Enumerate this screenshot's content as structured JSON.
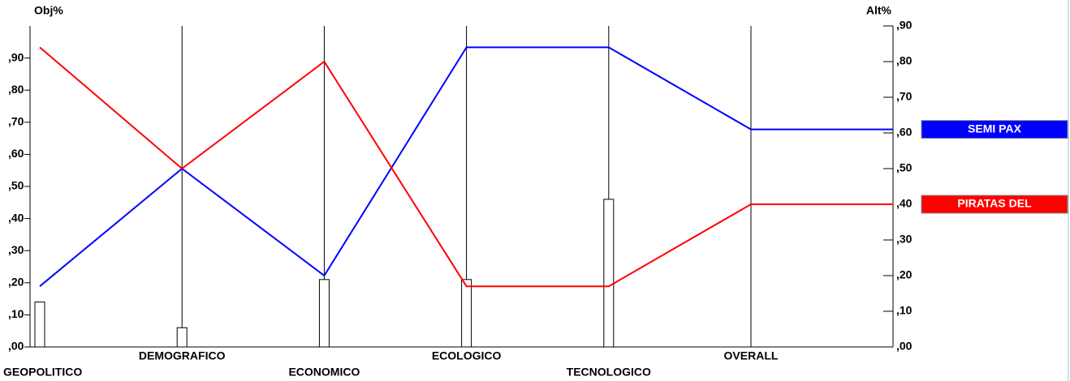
{
  "chart_data": {
    "type": "parallel",
    "y_label": "Obj%",
    "y2_label": "Alt%",
    "categories": [
      "GEOPOLITICO",
      "DEMOGRAFICO",
      "ECONOMICO",
      "ECOLOGICO",
      "TECNOLOGICO",
      "OVERALL"
    ],
    "weights": [
      0.14,
      0.06,
      0.21,
      0.21,
      0.46,
      null
    ],
    "weights_color": "#ffffff",
    "series": [
      {
        "name": "SEMI PAX",
        "color": "#0000ff",
        "axis": "y2",
        "values": [
          0.17,
          0.5,
          0.2,
          0.84,
          0.84,
          0.61
        ]
      },
      {
        "name": "PIRATAS DEL",
        "color": "#ff0000",
        "axis": "y2",
        "values": [
          0.84,
          0.5,
          0.8,
          0.17,
          0.17,
          0.4
        ]
      }
    ],
    "ylim": [
      0,
      1.0
    ],
    "yticks": [
      {
        "value": 0,
        "label": ",00"
      },
      {
        "value": 0.1,
        "label": ",10"
      },
      {
        "value": 0.2,
        "label": ",20"
      },
      {
        "value": 0.3,
        "label": ",30"
      },
      {
        "value": 0.4,
        "label": ",40"
      },
      {
        "value": 0.5,
        "label": ",50"
      },
      {
        "value": 0.6,
        "label": ",60"
      },
      {
        "value": 0.7,
        "label": ",70"
      },
      {
        "value": 0.8,
        "label": ",80"
      },
      {
        "value": 0.9,
        "label": ",90"
      }
    ],
    "y2lim": [
      0,
      0.9
    ],
    "y2ticks": [
      {
        "value": 0,
        "label": ",00"
      },
      {
        "value": 0.1,
        "label": ",10"
      },
      {
        "value": 0.2,
        "label": ",20"
      },
      {
        "value": 0.3,
        "label": ",30"
      },
      {
        "value": 0.4,
        "label": ",40"
      },
      {
        "value": 0.5,
        "label": ",50"
      },
      {
        "value": 0.6,
        "label": ",60"
      },
      {
        "value": 0.7,
        "label": ",70"
      },
      {
        "value": 0.8,
        "label": ",80"
      },
      {
        "value": 0.9,
        "label": ",90"
      }
    ]
  }
}
